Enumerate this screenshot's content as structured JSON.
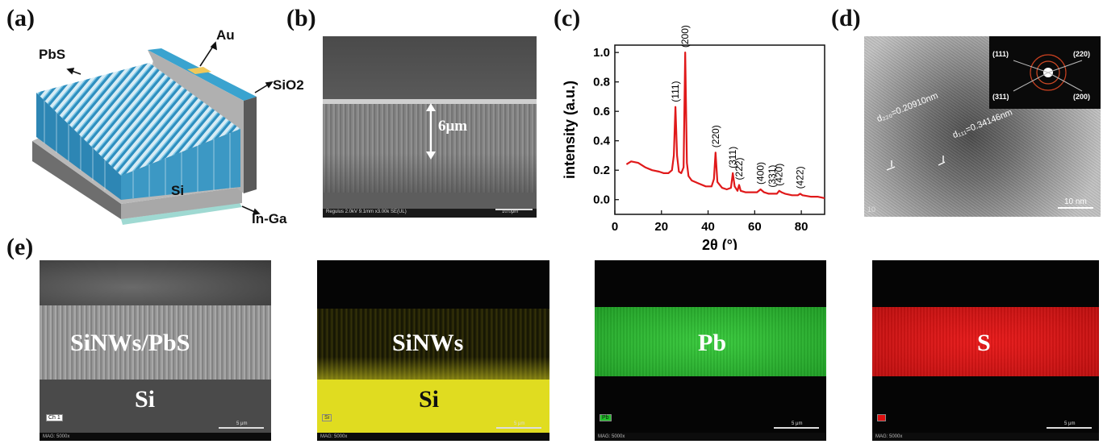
{
  "panels": {
    "a": {
      "label": "(a)",
      "layers": {
        "pbs": "PbS",
        "au": "Au",
        "sio2": "SiO2",
        "si": "Si",
        "inga": "In-Ga"
      },
      "colors": {
        "nanowire": "#3a9bc8",
        "au": "#f0c85a",
        "si": "#9a9a9a"
      }
    },
    "b": {
      "label": "(b)",
      "thickness": "6μm",
      "info_bar": "Regulus 2.0kV 9.1mm x3.00k SE(UL)",
      "scale_bar": "10.0μm"
    },
    "c": {
      "label": "(c)",
      "ylabel": "intensity (a.u.)",
      "xlabel": "2θ (°)",
      "peaks": [
        "(111)",
        "(200)",
        "(220)",
        "(311)",
        "(222)",
        "(400)",
        "(331)",
        "(420)",
        "(422)"
      ]
    },
    "d": {
      "label": "(d)",
      "d220": "d₂₂₀=0.20910nm",
      "d111": "d₁₁₁=0.34146nm",
      "saed": {
        "r111": "(111)",
        "r220": "(220)",
        "r311": "(311)",
        "r200": "(200)"
      },
      "scale_bar": "10 nm",
      "corner": "10"
    },
    "e": {
      "label": "(e)",
      "sem": {
        "top": "SiNWs/PbS",
        "bottom": "Si",
        "channel": "Ch 1",
        "mag": "MAG: 5000x",
        "scale": "5 μm"
      },
      "si_map": {
        "top": "SiNWs",
        "bottom": "Si",
        "channel": "Si",
        "mag": "MAG: 5000x",
        "scale": "5 μm"
      },
      "pb_map": {
        "label": "Pb",
        "channel": "Pb",
        "mag": "MAG: 5000x",
        "scale": "5 μm"
      },
      "s_map": {
        "label": "S",
        "channel": "S",
        "mag": "MAG: 5000x",
        "scale": "5 μm"
      },
      "colors": {
        "si": "#e0dc20",
        "pb": "#22c02a",
        "s": "#e01010"
      }
    }
  },
  "chart_data": {
    "type": "line",
    "title": "",
    "xlabel": "2θ (°)",
    "ylabel": "intensity (a.u.)",
    "xlim": [
      0,
      90
    ],
    "ylim": [
      -0.1,
      1.05
    ],
    "xticks": [
      0,
      20,
      40,
      60,
      80
    ],
    "yticks": [
      0.0,
      0.2,
      0.4,
      0.6,
      0.8,
      1.0
    ],
    "series": [
      {
        "color": "#e0191a",
        "x": [
          5,
          7,
          10,
          13,
          16,
          19,
          21,
          23,
          24.5,
          25.3,
          26,
          26.7,
          27.5,
          28.5,
          29.5,
          30.2,
          30.9,
          31.6,
          33,
          36,
          39,
          41.5,
          42.5,
          43.2,
          44,
          46,
          48,
          49.8,
          50.6,
          51.4,
          52.6,
          53.3,
          54,
          56,
          58,
          59.5,
          61,
          62.5,
          64,
          66,
          68,
          69.5,
          70.5,
          71.5,
          73,
          76,
          78.5,
          79.5,
          80.5,
          84,
          87,
          90
        ],
        "y": [
          0.24,
          0.26,
          0.25,
          0.22,
          0.2,
          0.19,
          0.18,
          0.18,
          0.2,
          0.3,
          0.63,
          0.3,
          0.19,
          0.18,
          0.22,
          1.0,
          0.25,
          0.16,
          0.13,
          0.11,
          0.09,
          0.09,
          0.14,
          0.32,
          0.12,
          0.08,
          0.07,
          0.08,
          0.18,
          0.09,
          0.06,
          0.1,
          0.06,
          0.05,
          0.05,
          0.05,
          0.05,
          0.07,
          0.05,
          0.04,
          0.04,
          0.04,
          0.06,
          0.05,
          0.04,
          0.03,
          0.03,
          0.04,
          0.03,
          0.02,
          0.02,
          0.01
        ]
      }
    ],
    "peak_labels": [
      {
        "text": "(111)",
        "x": 26,
        "y": 0.63
      },
      {
        "text": "(200)",
        "x": 30.2,
        "y": 1.0
      },
      {
        "text": "(220)",
        "x": 43.2,
        "y": 0.32
      },
      {
        "text": "(311)",
        "x": 50.6,
        "y": 0.18
      },
      {
        "text": "(222)",
        "x": 53.3,
        "y": 0.1
      },
      {
        "text": "(400)",
        "x": 62.5,
        "y": 0.07
      },
      {
        "text": "(331)",
        "x": 67.5,
        "y": 0.05
      },
      {
        "text": "(420)",
        "x": 70.5,
        "y": 0.06
      },
      {
        "text": "(422)",
        "x": 79.5,
        "y": 0.04
      }
    ]
  }
}
